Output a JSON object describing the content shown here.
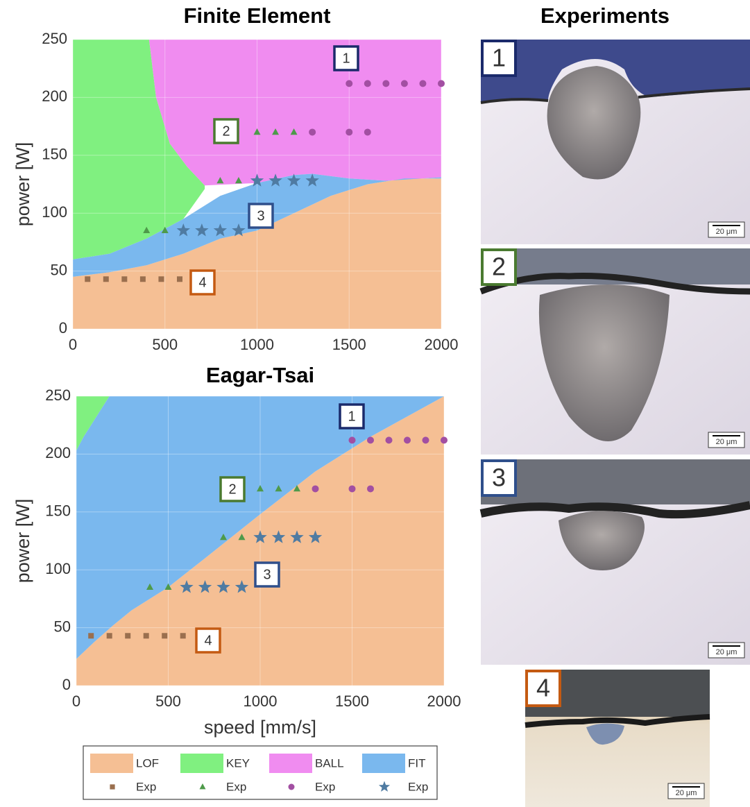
{
  "chart_data": [
    {
      "type": "scatter",
      "title": "Finite Element",
      "ylabel": "power [W]",
      "xlim": [
        0,
        2000
      ],
      "ylim": [
        0,
        250
      ],
      "xticks": [
        0,
        500,
        1000,
        1500,
        2000
      ],
      "yticks": [
        0,
        50,
        100,
        150,
        200,
        250
      ],
      "grid": true,
      "regions": [
        {
          "name": "LOF",
          "color": "#f5bf94",
          "x": [
            0,
            2000,
            2000,
            1800,
            1600,
            1400,
            1200,
            1000,
            800,
            600,
            400,
            200,
            0
          ],
          "y": [
            0,
            0,
            130,
            130,
            125,
            115,
            100,
            85,
            78,
            65,
            55,
            49,
            45
          ]
        },
        {
          "name": "KEY",
          "color": "#80f080",
          "x": [
            0,
            200,
            400,
            600,
            716,
            716,
            621,
            527,
            452,
            414,
            0
          ],
          "y": [
            60,
            65,
            78,
            95,
            121,
            124,
            140,
            160,
            200,
            250,
            250
          ]
        },
        {
          "name": "BALL",
          "color": "#f08cf0",
          "x": [
            414,
            2000,
            2000,
            1700,
            1500,
            1300,
            1200,
            1000,
            716,
            621,
            527,
            452
          ],
          "y": [
            250,
            250,
            131,
            128,
            130,
            134,
            133,
            126,
            124,
            140,
            160,
            200
          ]
        },
        {
          "name": "FIT",
          "color": "#7ab8ee",
          "x": [
            0,
            200,
            400,
            600,
            800,
            1000,
            1200,
            1300,
            1500,
            1700,
            2000,
            2000,
            1800,
            1600,
            1400,
            1200,
            1000,
            800,
            600,
            400,
            200,
            0
          ],
          "y": [
            60,
            65,
            78,
            95,
            115,
            126,
            133,
            134,
            130,
            128,
            131,
            130,
            130,
            125,
            115,
            100,
            85,
            78,
            65,
            55,
            49,
            45
          ]
        }
      ],
      "series": [
        {
          "name": "Exp",
          "color": "#9a6f4e",
          "marker": "square",
          "x": [
            80,
            180,
            280,
            380,
            480,
            580
          ],
          "y": [
            43,
            43,
            43,
            43,
            43,
            43
          ]
        },
        {
          "name": "Exp",
          "color": "#4e9a4a",
          "marker": "triangle",
          "x": [
            400,
            500,
            800,
            900,
            1000,
            1100,
            1200
          ],
          "y": [
            85,
            85,
            128,
            128,
            170,
            170,
            170
          ]
        },
        {
          "name": "Exp",
          "color": "#a24fa2",
          "marker": "circle",
          "x": [
            1300,
            1500,
            1600,
            1500,
            1600,
            1700,
            1800,
            1900,
            2000
          ],
          "y": [
            170,
            170,
            170,
            212,
            212,
            212,
            212,
            212,
            212
          ]
        },
        {
          "name": "Exp",
          "color": "#4f7ba2",
          "marker": "star",
          "x": [
            600,
            700,
            800,
            900,
            1000,
            1100,
            1200,
            1300
          ],
          "y": [
            85,
            85,
            85,
            85,
            128,
            128,
            128,
            128
          ]
        }
      ],
      "annotations": [
        {
          "text": "1",
          "color": "#1b2a6b"
        },
        {
          "text": "2",
          "color": "#4a7a30"
        },
        {
          "text": "3",
          "color": "#2f4f8b"
        },
        {
          "text": "4",
          "color": "#c45a12"
        }
      ]
    },
    {
      "type": "scatter",
      "title": "Eagar-Tsai",
      "ylabel": "power [W]",
      "xlabel": "speed [mm/s]",
      "xlim": [
        0,
        2000
      ],
      "ylim": [
        0,
        250
      ],
      "xticks": [
        0,
        500,
        1000,
        1500,
        2000
      ],
      "yticks": [
        0,
        50,
        100,
        150,
        200,
        250
      ],
      "grid": true,
      "regions": [
        {
          "name": "LOF",
          "color": "#f5bf94",
          "x": [
            0,
            2000,
            2000,
            1600,
            1300,
            1000,
            700,
            500,
            300,
            200,
            100,
            0
          ],
          "y": [
            0,
            0,
            250,
            215,
            185,
            148,
            110,
            85,
            65,
            52,
            38,
            23
          ]
        },
        {
          "name": "KEY",
          "color": "#80f080",
          "x": [
            0,
            180,
            120,
            40,
            0
          ],
          "y": [
            250,
            250,
            235,
            215,
            203
          ]
        },
        {
          "name": "FIT",
          "color": "#7ab8ee",
          "x": [
            0,
            100,
            200,
            300,
            500,
            700,
            1000,
            1300,
            1600,
            2000,
            180,
            120,
            40,
            0
          ],
          "y": [
            23,
            38,
            52,
            65,
            85,
            110,
            148,
            185,
            215,
            250,
            250,
            235,
            215,
            203
          ]
        }
      ],
      "series": [
        {
          "name": "Exp",
          "color": "#9a6f4e",
          "marker": "square",
          "x": [
            80,
            180,
            280,
            380,
            480,
            580
          ],
          "y": [
            43,
            43,
            43,
            43,
            43,
            43
          ]
        },
        {
          "name": "Exp",
          "color": "#4e9a4a",
          "marker": "triangle",
          "x": [
            400,
            500,
            800,
            900,
            1000,
            1100,
            1200
          ],
          "y": [
            85,
            85,
            128,
            128,
            170,
            170,
            170
          ]
        },
        {
          "name": "Exp",
          "color": "#a24fa2",
          "marker": "circle",
          "x": [
            1300,
            1500,
            1600,
            1500,
            1600,
            1700,
            1800,
            1900,
            2000
          ],
          "y": [
            170,
            170,
            170,
            212,
            212,
            212,
            212,
            212,
            212
          ]
        },
        {
          "name": "Exp",
          "color": "#4f7ba2",
          "marker": "star",
          "x": [
            600,
            700,
            800,
            900,
            1000,
            1100,
            1200,
            1300
          ],
          "y": [
            85,
            85,
            85,
            85,
            128,
            128,
            128,
            128
          ]
        }
      ],
      "annotations": [
        {
          "text": "1",
          "color": "#1b2a6b"
        },
        {
          "text": "2",
          "color": "#4a7a30"
        },
        {
          "text": "3",
          "color": "#2f4f8b"
        },
        {
          "text": "4",
          "color": "#c45a12"
        }
      ]
    }
  ],
  "experiments": {
    "title": "Experiments",
    "panels": [
      {
        "label": "1",
        "color": "#1b2a6b",
        "scale": "20 μm"
      },
      {
        "label": "2",
        "color": "#4a7a30",
        "scale": "20 μm"
      },
      {
        "label": "3",
        "color": "#2f4f8b",
        "scale": "20 μm"
      },
      {
        "label": "4",
        "color": "#c45a12",
        "scale": "20 μm"
      }
    ]
  }
}
